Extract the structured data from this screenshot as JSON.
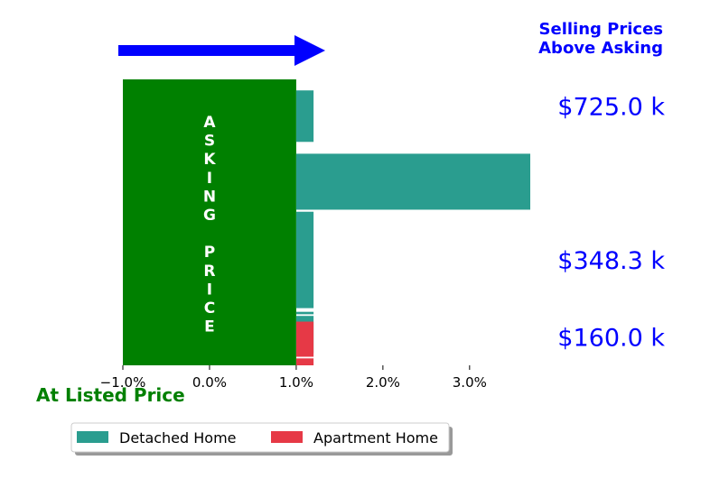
{
  "chart_data": {
    "type": "bar",
    "orientation": "horizontal",
    "x_axis": {
      "ticks": [
        -1.0,
        0.0,
        1.0,
        2.0,
        3.0
      ],
      "tick_labels": [
        "−1.0%",
        "0.0%",
        "1.0%",
        "2.0%",
        "3.0%"
      ],
      "xlim": [
        -1.0,
        3.7
      ]
    },
    "y_axis": {
      "ylim": [
        90,
        790
      ],
      "tick_labels": [
        "$725.0 k",
        "$348.3 k",
        "$160.0 k"
      ],
      "ticks": [
        725.0,
        348.3,
        160.0
      ]
    },
    "asking_block": {
      "label": "ASKING PRICE",
      "x_range": [
        -1.0,
        1.0
      ],
      "color": "#008000"
    },
    "bars": [
      {
        "series": "Detached Home",
        "y_low": 637,
        "y_high": 763,
        "pct": 1.2
      },
      {
        "series": "Detached Home",
        "y_low": 471,
        "y_high": 608,
        "pct": 3.7
      },
      {
        "series": "Detached Home",
        "y_low": 230,
        "y_high": 466,
        "pct": 1.2
      },
      {
        "series": "Detached Home",
        "y_low": 215,
        "y_high": 221,
        "pct": 1.2
      },
      {
        "series": "Detached Home",
        "y_low": 120,
        "y_high": 211,
        "pct": 1.2
      },
      {
        "series": "Apartment Home",
        "y_low": 90,
        "y_high": 107,
        "pct": 1.2
      },
      {
        "series": "Apartment Home",
        "y_low": 111,
        "y_high": 197,
        "pct": 1.2
      }
    ],
    "series": [
      {
        "name": "Detached Home",
        "color": "#2a9d8f"
      },
      {
        "name": "Apartment Home",
        "color": "#e63946"
      }
    ],
    "annotations": {
      "above_title": "Selling Prices\nAbove Asking",
      "at_listed": "At Listed Price"
    },
    "label_color": "#0000ff",
    "at_listed_color": "#008000",
    "arrow_color": "#0000ff",
    "legend_location": "bottom-left",
    "grid": false
  }
}
